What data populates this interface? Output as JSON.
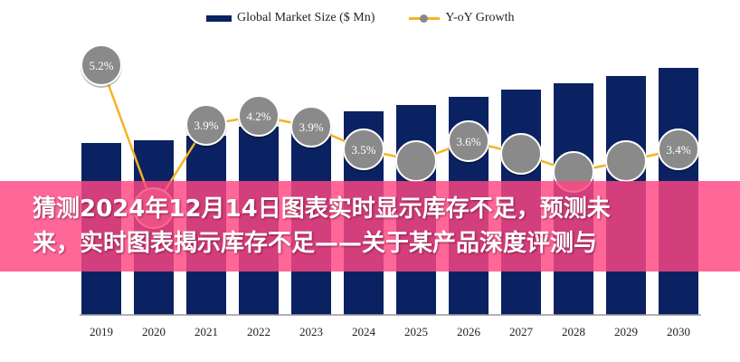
{
  "chart_data": {
    "type": "bar+line",
    "title": "",
    "categories": [
      "2019",
      "2020",
      "2021",
      "2022",
      "2023",
      "2024",
      "2025",
      "2026",
      "2027",
      "2028",
      "2029",
      "2030"
    ],
    "series": [
      {
        "name": "Global Market Size ($ Mn)",
        "type": "bar",
        "color": "#0b2262",
        "values": [
          190,
          193,
          198,
          208,
          215,
          225,
          232,
          241,
          249,
          256,
          264,
          273
        ]
      },
      {
        "name": "Y-oY Growth",
        "type": "line",
        "color": "#f5b324",
        "marker_color": "#8a8a8a",
        "values": [
          5.2,
          null,
          3.9,
          4.2,
          3.9,
          3.5,
          null,
          3.6,
          null,
          null,
          null,
          3.4
        ],
        "labels": [
          "5.2%",
          "",
          "3.9%",
          "4.2%",
          "3.9%",
          "3.5%",
          "",
          "3.6%",
          "",
          "",
          "",
          "3.4%"
        ]
      }
    ],
    "xlabel": "",
    "ylabel": "",
    "grid": false,
    "legend": "top"
  },
  "legend": {
    "bar_label": "Global Market Size ($ Mn)",
    "line_label": "Y-oY Growth"
  },
  "banner": {
    "line1": "猜测2024年12月14日图表实时显示库存不足，预测未",
    "line2": "来，实时图表揭示库存不足——关于某产品深度评测与"
  }
}
